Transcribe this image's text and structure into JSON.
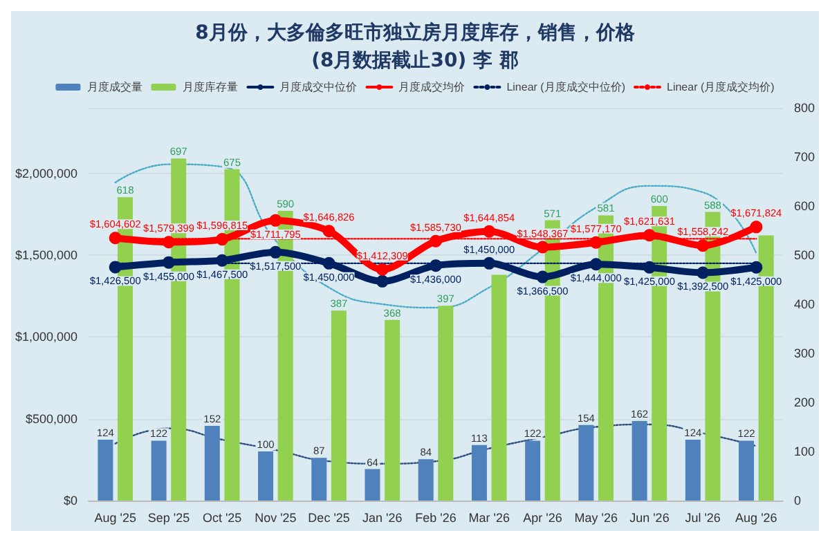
{
  "chart_data": {
    "type": "bar",
    "title": "8月份，大多倫多旺市独立房月度库存，销售，价格",
    "subtitle": "(8月数据截止30) 李 郡",
    "categories": [
      "Aug '25",
      "Sep '25",
      "Oct '25",
      "Nov '25",
      "Dec '25",
      "Jan '26",
      "Feb '26",
      "Mar '26",
      "Apr '26",
      "May '26",
      "Jun '26",
      "Jul '26",
      "Aug '26"
    ],
    "series": [
      {
        "name": "月度成交量",
        "axis": "y2",
        "color": "#4f81bd",
        "values": [
          124,
          122,
          152,
          100,
          87,
          64,
          84,
          113,
          122,
          154,
          162,
          124,
          122
        ],
        "value_labels": [
          "124",
          "122",
          "152",
          "100",
          "87",
          "64",
          "84",
          "113",
          "122",
          "154",
          "162",
          "124",
          "122"
        ]
      },
      {
        "name": "月度库存量",
        "axis": "y2",
        "color": "#92d050",
        "values": [
          618,
          697,
          675,
          590,
          387,
          368,
          397,
          460,
          571,
          581,
          600,
          588,
          540
        ],
        "value_labels": [
          "618",
          "697",
          "675",
          "590",
          "387",
          "368",
          "397",
          null,
          "571",
          "581",
          "600",
          "588",
          null
        ]
      },
      {
        "name": "月度成交中位价",
        "type": "line",
        "color": "#002060",
        "marker": "circle",
        "line_style": "solid",
        "values": [
          1426500,
          1455000,
          1467500,
          1517500,
          1450000,
          1340000,
          1436000,
          1450000,
          1366500,
          1444000,
          1425000,
          1392500,
          1425000
        ],
        "value_labels": [
          "$1,426,500",
          "$1,455,000",
          "$1,467,500",
          "$1,517,500",
          "$1,450,000",
          null,
          "$1,436,000",
          "$1,450,000",
          "$1,366,500",
          "$1,444,000",
          "$1,425,000",
          "$1,392,500",
          "$1,425,000"
        ]
      },
      {
        "name": "月度成交均价",
        "type": "line",
        "color": "#ff0000",
        "marker": "circle",
        "line_style": "solid",
        "values": [
          1604602,
          1579399,
          1596815,
          1711795,
          1646826,
          1412309,
          1585730,
          1644854,
          1548367,
          1577170,
          1621631,
          1558242,
          1671824
        ],
        "value_labels": [
          "$1,604,602",
          "$1,579,399",
          "$1,596,815",
          "$1,711,795",
          "$1,646,826",
          "$1,412,309",
          "$1,585,730",
          "$1,644,854",
          "$1,548,367",
          "$1,577,170",
          "$1,621,631",
          "$1,558,242",
          "$1,671,824"
        ]
      },
      {
        "name": "Linear (月度成交中位价)",
        "type": "line",
        "color": "#002060",
        "marker": "none",
        "line_style": "dotted",
        "x": [
          "Aug '25",
          "Aug '26"
        ],
        "values": [
          1450000,
          1450000
        ]
      },
      {
        "name": "Linear (月度成交均价)",
        "type": "line",
        "color": "#ff0000",
        "marker": "none",
        "line_style": "dotted",
        "x": [
          "Aug '25",
          "Aug '26"
        ],
        "values": [
          1600000,
          1600000
        ]
      },
      {
        "type": "line",
        "axis": "y2",
        "color": "#4bacc6",
        "marker": "none",
        "line_style": "dotted",
        "values": [
          648,
          685,
          680,
          530,
          434,
          400,
          393,
          434,
          512,
          597,
          641,
          628,
          504
        ]
      },
      {
        "type": "line",
        "axis": "y2",
        "color": "#2f4f7f",
        "marker": "none",
        "line_style": "dotted",
        "values": [
          116,
          147,
          124,
          103,
          80,
          75,
          80,
          106,
          129,
          150,
          155,
          137,
          111
        ]
      }
    ],
    "ylim": [
      0,
      2400000
    ],
    "yticks": [
      {
        "value": 0,
        "label": "$0"
      },
      {
        "value": 500000,
        "label": "$500,000"
      },
      {
        "value": 1000000,
        "label": "$1,000,000"
      },
      {
        "value": 1500000,
        "label": "$1,500,000"
      },
      {
        "value": 2000000,
        "label": "$2,000,000"
      }
    ],
    "y2lim": [
      0,
      800
    ],
    "y2ticks": [
      0,
      100,
      200,
      300,
      400,
      500,
      600,
      700,
      800
    ],
    "grid": "y",
    "legend": "top"
  }
}
